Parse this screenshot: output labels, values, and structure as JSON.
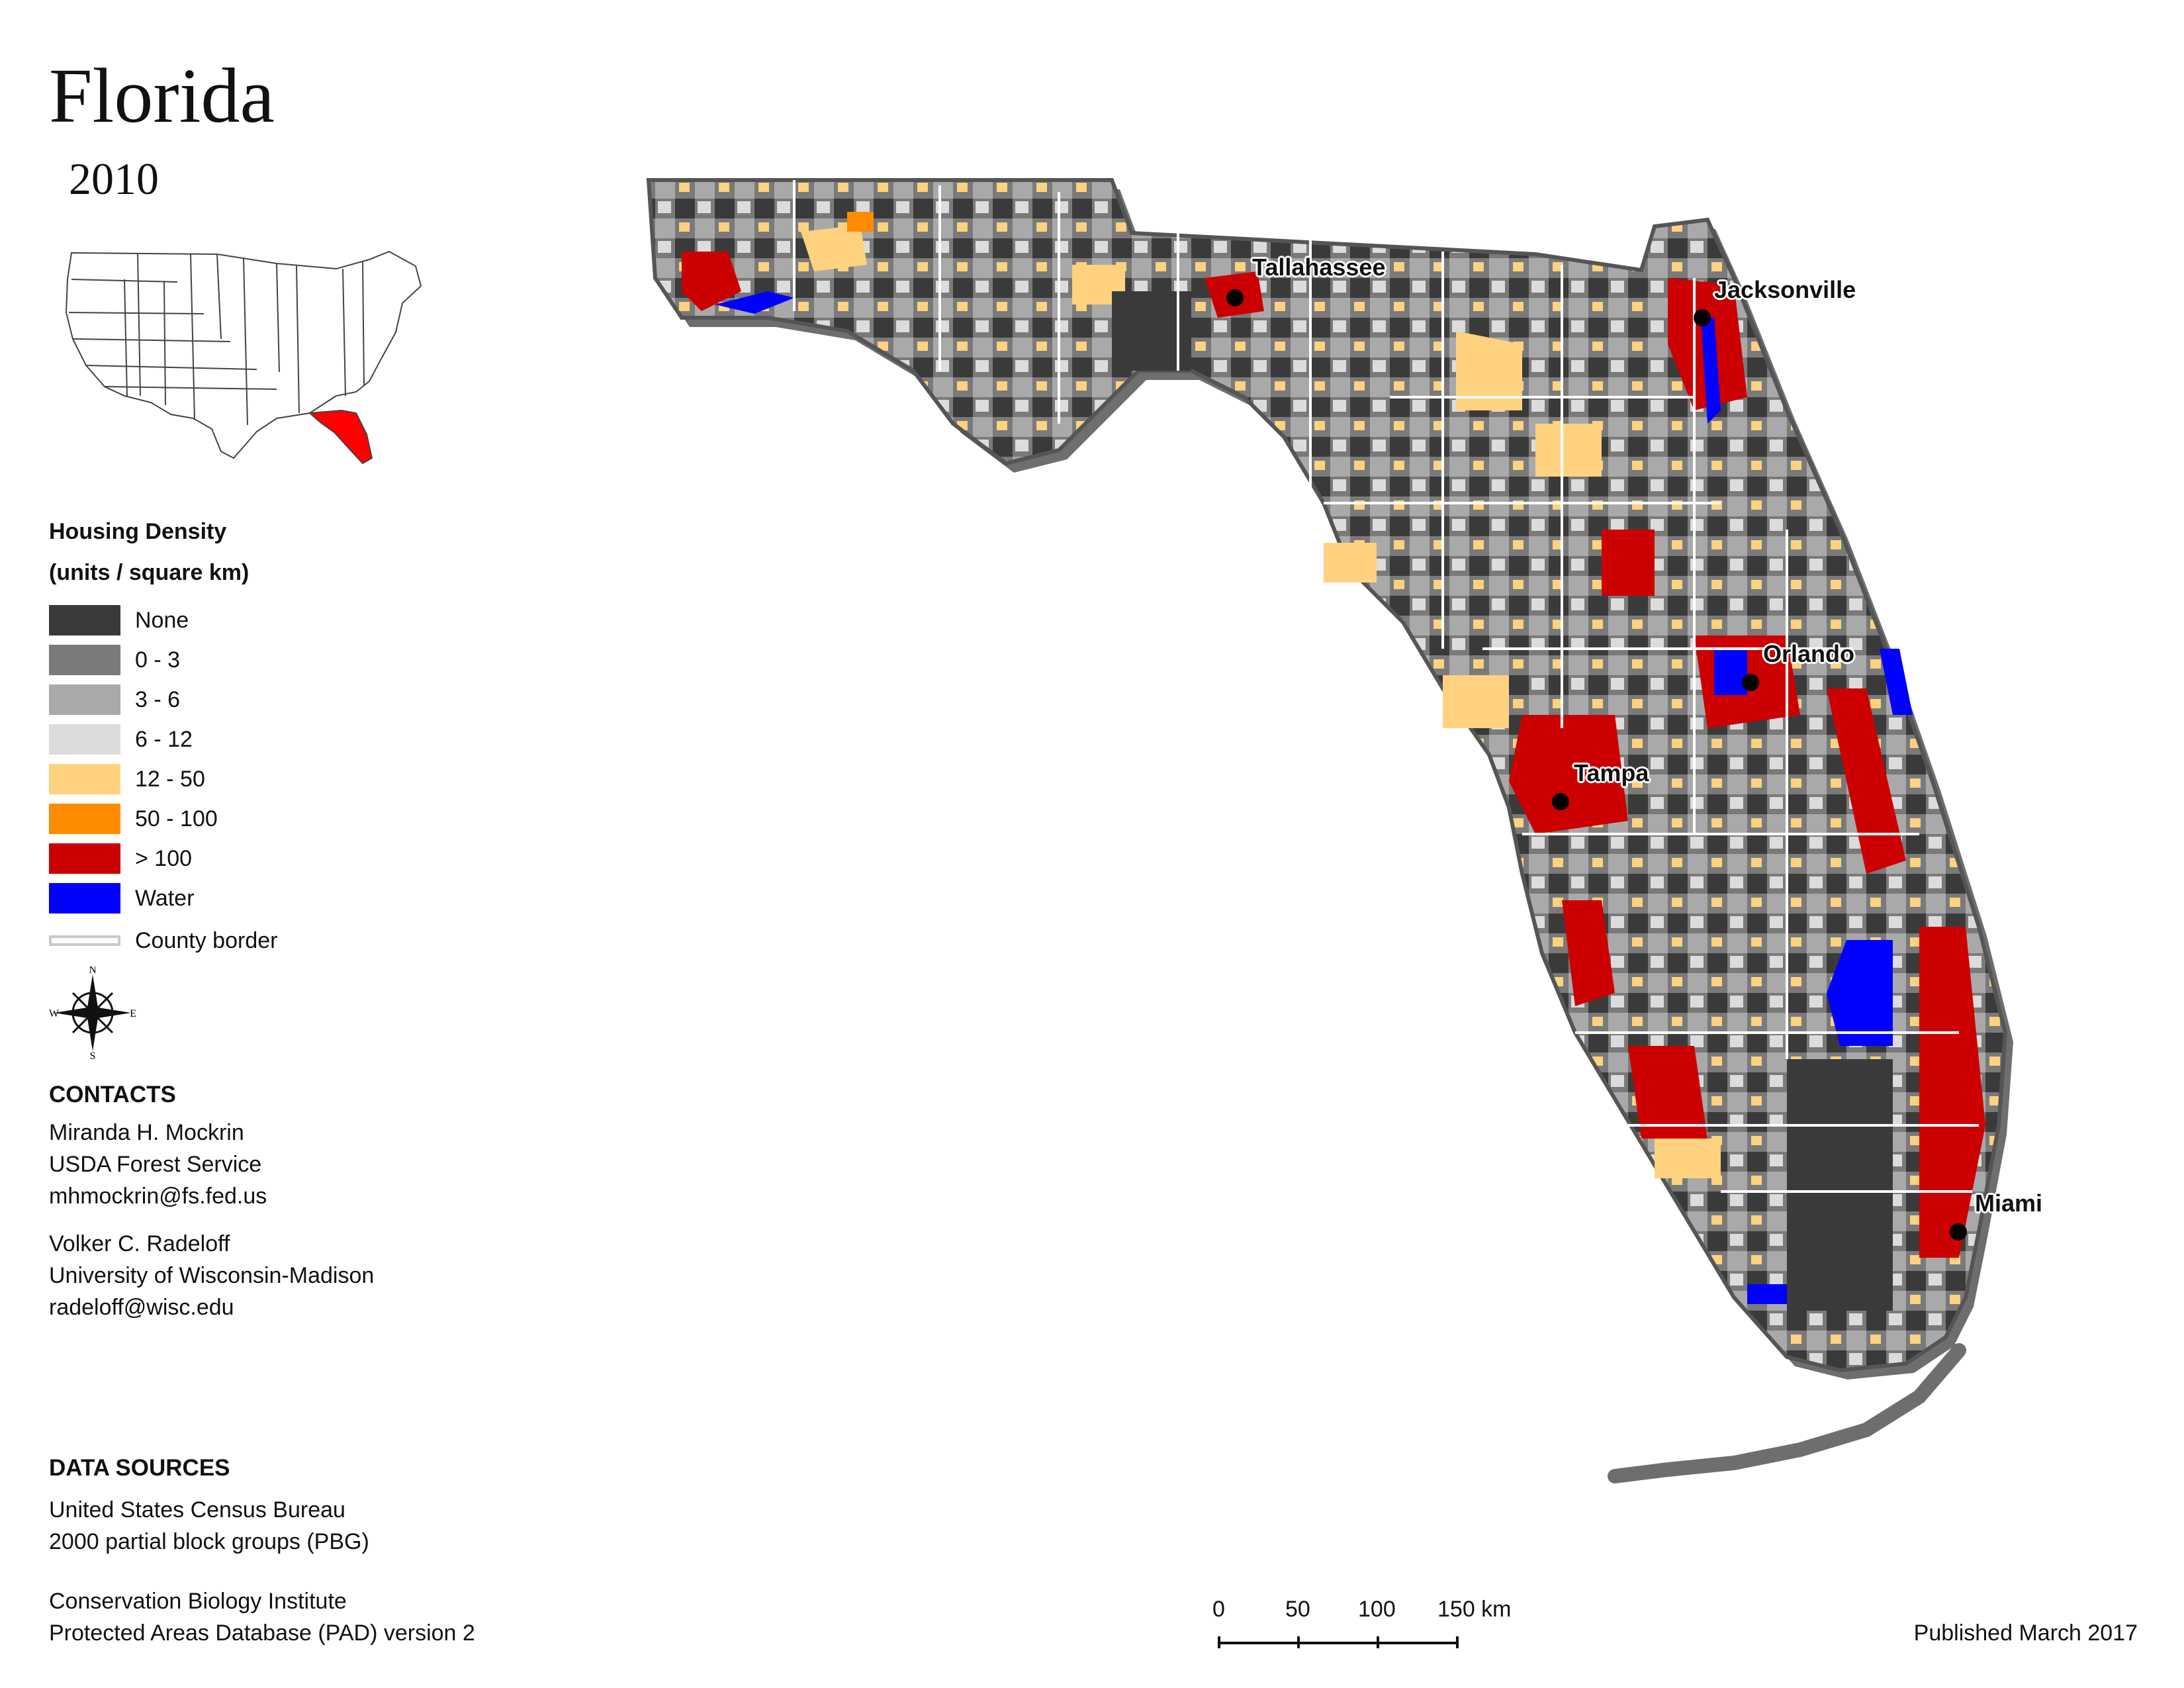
{
  "title": "Florida",
  "year": "2010",
  "legend": {
    "heading": "Housing Density",
    "units": "(units / square km)",
    "items": [
      {
        "label": "None",
        "color": "#3a3a3a"
      },
      {
        "label": "0 - 3",
        "color": "#7a7a7a"
      },
      {
        "label": "3 - 6",
        "color": "#a9a9a9"
      },
      {
        "label": "6 - 12",
        "color": "#dcdcdc"
      },
      {
        "label": "12 - 50",
        "color": "#ffd27f"
      },
      {
        "label": "50 - 100",
        "color": "#ff8c00"
      },
      {
        "label": "> 100",
        "color": "#cc0000"
      },
      {
        "label": "Water",
        "color": "#0000ff"
      }
    ],
    "county_border_label": "County border"
  },
  "compass": {
    "n": "N",
    "s": "S",
    "e": "E",
    "w": "W"
  },
  "contacts": {
    "heading": "CONTACTS",
    "person1": {
      "name": "Miranda H. Mockrin",
      "org": "USDA Forest Service",
      "email": "mhmockrin@fs.fed.us"
    },
    "person2": {
      "name": "Volker C. Radeloff",
      "org": "University of Wisconsin-Madison",
      "email": "radeloff@wisc.edu"
    }
  },
  "data_sources": {
    "heading": "DATA SOURCES",
    "line1": "United States Census Bureau",
    "line2": "2000 partial block groups (PBG)",
    "line3": "Conservation Biology Institute",
    "line4": "Protected Areas Database (PAD) version 2"
  },
  "cities": {
    "tallahassee": "Tallahassee",
    "jacksonville": "Jacksonville",
    "orlando": "Orlando",
    "tampa": "Tampa",
    "miami": "Miami"
  },
  "scale_bar": {
    "ticks": [
      "0",
      "50",
      "100",
      "150 km"
    ]
  },
  "published": "Published March 2017",
  "colors": {
    "highlight_state": "#ff0000",
    "shadow": "#6e6e6e",
    "county_border": "#ffffff"
  }
}
